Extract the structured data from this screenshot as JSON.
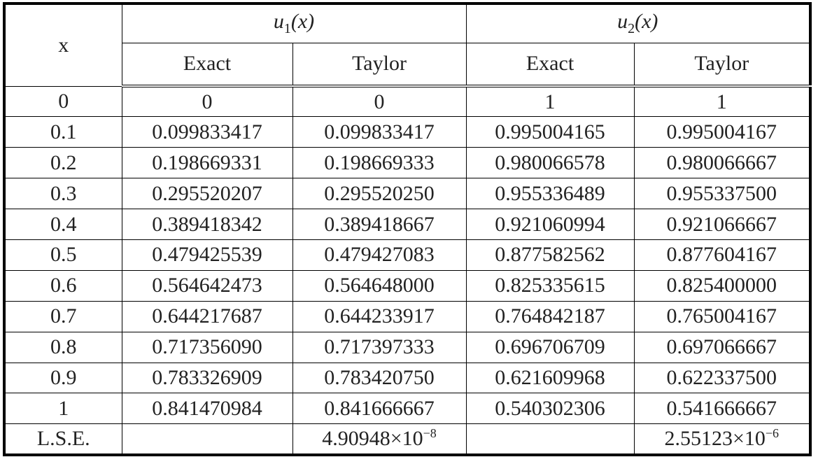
{
  "table": {
    "header": {
      "x": "x",
      "u1": {
        "symbol": "u",
        "subscript": "1",
        "argument": "(x)"
      },
      "u2": {
        "symbol": "u",
        "subscript": "2",
        "argument": "(x)"
      },
      "subheaders": [
        "Exact",
        "Taylor",
        "Exact",
        "Taylor"
      ]
    },
    "rows": [
      [
        "0",
        "0",
        "0",
        "1",
        "1"
      ],
      [
        "0.1",
        "0.099833417",
        "0.099833417",
        "0.995004165",
        "0.995004167"
      ],
      [
        "0.2",
        "0.198669331",
        "0.198669333",
        "0.980066578",
        "0.980066667"
      ],
      [
        "0.3",
        "0.295520207",
        "0.295520250",
        "0.955336489",
        "0.955337500"
      ],
      [
        "0.4",
        "0.389418342",
        "0.389418667",
        "0.921060994",
        "0.921066667"
      ],
      [
        "0.5",
        "0.479425539",
        "0.479427083",
        "0.877582562",
        "0.877604167"
      ],
      [
        "0.6",
        "0.564642473",
        "0.564648000",
        "0.825335615",
        "0.825400000"
      ],
      [
        "0.7",
        "0.644217687",
        "0.644233917",
        "0.764842187",
        "0.765004167"
      ],
      [
        "0.8",
        "0.717356090",
        "0.717397333",
        "0.696706709",
        "0.697066667"
      ],
      [
        "0.9",
        "0.783326909",
        "0.783420750",
        "0.621609968",
        "0.622337500"
      ],
      [
        "1",
        "0.841470984",
        "0.841666667",
        "0.540302306",
        "0.541666667"
      ]
    ],
    "lse": {
      "label": "L.S.E.",
      "u1_taylor": {
        "mantissa": "4.90948",
        "base": "×10",
        "exponent": "−8"
      },
      "u2_taylor": {
        "mantissa": "2.55123",
        "base": "×10",
        "exponent": "−6"
      }
    }
  }
}
